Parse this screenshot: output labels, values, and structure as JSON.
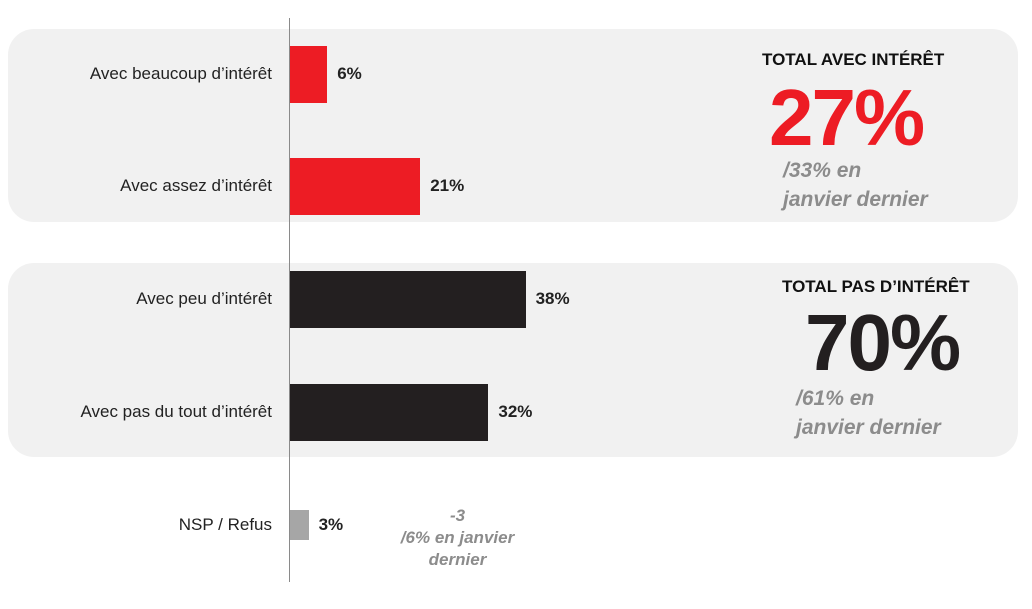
{
  "colors": {
    "interest": "#ed1c24",
    "no_interest": "#231f20",
    "nsp": "#a6a6a6",
    "panel": "#f1f1f1",
    "muted_text": "#8c8c8c"
  },
  "chart_data": {
    "type": "bar",
    "orientation": "horizontal",
    "categories": [
      "Avec beaucoup d’intérêt",
      "Avec assez d’intérêt",
      "Avec peu d’intérêt",
      "Avec pas du tout d’intérêt",
      "NSP / Refus"
    ],
    "values": [
      6,
      21,
      38,
      32,
      3
    ],
    "value_labels": [
      "6%",
      "21%",
      "38%",
      "32%",
      "3%"
    ],
    "bar_groups": [
      "interest",
      "interest",
      "no_interest",
      "no_interest",
      "nsp"
    ],
    "xlim": [
      0,
      100
    ],
    "unit": "%"
  },
  "totals": {
    "with_interest": {
      "title": "TOTAL AVEC INTÉRÊT",
      "value": "27%",
      "previous_line1": "/33% en",
      "previous_line2": "janvier dernier"
    },
    "without_interest": {
      "title": "TOTAL PAS D’INTÉRÊT",
      "value": "70%",
      "previous_line1": "/61% en",
      "previous_line2": "janvier dernier"
    }
  },
  "nsp_note": {
    "change": "-3",
    "line1": "/6% en janvier",
    "line2": "dernier"
  }
}
